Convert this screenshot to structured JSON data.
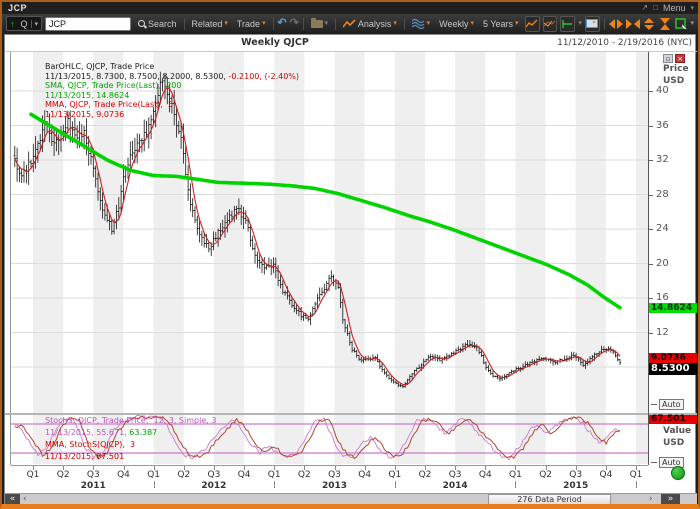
{
  "titlebar": {
    "title": "JCP",
    "menu_label": "Menu"
  },
  "icons": {
    "popout": "↗",
    "window": "□",
    "caret": "▾",
    "undo": "↶",
    "redo": "↷",
    "collapse": "▾",
    "scroll_far_left": "«",
    "scroll_left": "‹",
    "scroll_right": "›",
    "scroll_far_right": "»",
    "symbol_up_arrow": "↑",
    "close": "×",
    "minimize": "▫"
  },
  "toolbar": {
    "symbol_combo_letter": "Q",
    "symbol_input": "JCP",
    "search_label": "Search",
    "related_label": "Related",
    "trade_label": "Trade",
    "analysis_label": "Analysis",
    "interval_label": "Weekly",
    "range_label": "5 Years"
  },
  "chart": {
    "title": "Weekly QJCP",
    "date_range": "11/12/2010 - 2/19/2016 (NYC)",
    "legend_main": [
      {
        "segments": [
          {
            "text": "BarOHLC, QJCP, Trade Price",
            "color": "#1a1a1a"
          }
        ]
      },
      {
        "segments": [
          {
            "text": "11/13/2015, 8.7300, 8.7500, 8.2000, 8.5300, ",
            "color": "#1a1a1a"
          },
          {
            "text": "-0.2100, (-2.40%)",
            "color": "#d40000"
          }
        ]
      },
      {
        "segments": [
          {
            "text": "SMA, QJCP, Trade Price(Last),  200",
            "color": "#00a500"
          }
        ]
      },
      {
        "segments": [
          {
            "text": "11/13/2015, 14.8624",
            "color": "#00a500"
          }
        ]
      },
      {
        "segments": [
          {
            "text": "MMA, QJCP, Trade Price(Last),  5",
            "color": "#d40000"
          }
        ]
      },
      {
        "segments": [
          {
            "text": "11/13/2015, 9.0736",
            "color": "#d40000"
          }
        ]
      }
    ],
    "legend_stoch": [
      {
        "segments": [
          {
            "text": "StochS, QJCP, Trade Price,  12, 3, Simple, 3",
            "color": "#bb55bb"
          }
        ]
      },
      {
        "segments": [
          {
            "text": "11/13/2015, 55.671, ",
            "color": "#bb55bb"
          },
          {
            "text": "63.387",
            "color": "#00a500"
          }
        ]
      },
      {
        "segments": [
          {
            "text": "MMA, StochS(QJCP),  3",
            "color": "#d40000"
          }
        ]
      },
      {
        "segments": [
          {
            "text": "11/13/2015, 67.501",
            "color": "#d40000"
          }
        ]
      }
    ],
    "price_axis": {
      "title_line1": "Price",
      "title_line2": "USD",
      "ticks": [
        40,
        36,
        32,
        28,
        24,
        20,
        16,
        12,
        8
      ],
      "auto_label": "Auto",
      "price_labels": [
        {
          "text": "14.8624",
          "value": 14.8624,
          "bg": "#00dd00",
          "fg": "#003300"
        },
        {
          "text": "9.0736",
          "value": 9.0736,
          "bg": "#e80000",
          "fg": "#200000"
        },
        {
          "text": "8.5300",
          "value": 8.53,
          "bg": "#000000",
          "fg": "#ffffff"
        }
      ]
    },
    "value_axis": {
      "title_line1": "Value",
      "title_line2": "USD",
      "auto_label": "Auto",
      "top_label": {
        "text": "67.501",
        "bg": "#e80000",
        "fg": "#200000"
      }
    },
    "x_axis": {
      "quarters": [
        "Q1",
        "Q2",
        "Q3",
        "Q4",
        "Q1",
        "Q2",
        "Q3",
        "Q4",
        "Q1",
        "Q2",
        "Q3",
        "Q4",
        "Q1",
        "Q2",
        "Q3",
        "Q4",
        "Q1",
        "Q2",
        "Q3",
        "Q4",
        "Q1"
      ],
      "years": [
        "2011",
        "2012",
        "2013",
        "2014",
        "2015"
      ]
    },
    "scrollbar": {
      "data_period_label": "276 Data Period"
    }
  },
  "chart_data": {
    "type": "ohlc",
    "title": "Weekly QJCP",
    "symbol": "QJCP",
    "interval": "Weekly",
    "date_range": [
      "11/12/2010",
      "2/19/2016"
    ],
    "weeks_shown": 276,
    "last_bar": {
      "date": "11/13/2015",
      "open": 8.73,
      "high": 8.75,
      "low": 8.2,
      "close": 8.53,
      "change": -0.21,
      "change_pct": -2.4
    },
    "price_axis": {
      "min": 4,
      "max": 44,
      "tick_step": 4,
      "unit": "USD"
    },
    "overlays": [
      {
        "name": "SMA 200",
        "color": "#00d300",
        "last": 14.8624
      },
      {
        "name": "MMA 5",
        "color": "#cc2020",
        "last": 9.0736
      }
    ],
    "close_weekly_anchors": [
      [
        0,
        31.8
      ],
      [
        3,
        29.8
      ],
      [
        6,
        31.5
      ],
      [
        10,
        33.5
      ],
      [
        13,
        36.3
      ],
      [
        17,
        33.8
      ],
      [
        20,
        35.0
      ],
      [
        23,
        36.5
      ],
      [
        26,
        34.5
      ],
      [
        30,
        35.2
      ],
      [
        34,
        31.0
      ],
      [
        38,
        26.0
      ],
      [
        42,
        24.0
      ],
      [
        45,
        26.5
      ],
      [
        47,
        30.0
      ],
      [
        51,
        33.2
      ],
      [
        56,
        34.8
      ],
      [
        60,
        37.5
      ],
      [
        64,
        41.6
      ],
      [
        68,
        38.5
      ],
      [
        72,
        34.5
      ],
      [
        76,
        27.0
      ],
      [
        80,
        23.0
      ],
      [
        84,
        21.8
      ],
      [
        88,
        23.5
      ],
      [
        92,
        25.0
      ],
      [
        96,
        26.3
      ],
      [
        100,
        25.0
      ],
      [
        104,
        21.0
      ],
      [
        108,
        19.5
      ],
      [
        112,
        19.8
      ],
      [
        116,
        16.8
      ],
      [
        120,
        15.2
      ],
      [
        124,
        14.0
      ],
      [
        127,
        13.6
      ],
      [
        130,
        15.5
      ],
      [
        134,
        17.2
      ],
      [
        137,
        18.5
      ],
      [
        140,
        17.0
      ],
      [
        142,
        13.5
      ],
      [
        146,
        10.0
      ],
      [
        150,
        8.7
      ],
      [
        152,
        8.9
      ],
      [
        156,
        9.0
      ],
      [
        160,
        7.3
      ],
      [
        164,
        6.2
      ],
      [
        168,
        5.7
      ],
      [
        172,
        7.2
      ],
      [
        176,
        8.3
      ],
      [
        180,
        9.3
      ],
      [
        184,
        8.8
      ],
      [
        188,
        9.3
      ],
      [
        192,
        10.0
      ],
      [
        196,
        10.6
      ],
      [
        200,
        10.4
      ],
      [
        204,
        8.0
      ],
      [
        207,
        7.0
      ],
      [
        210,
        6.6
      ],
      [
        214,
        7.4
      ],
      [
        218,
        7.8
      ],
      [
        222,
        8.3
      ],
      [
        226,
        8.8
      ],
      [
        230,
        9.0
      ],
      [
        234,
        8.5
      ],
      [
        238,
        9.0
      ],
      [
        242,
        9.4
      ],
      [
        246,
        8.3
      ],
      [
        250,
        9.2
      ],
      [
        254,
        9.9
      ],
      [
        257,
        10.0
      ],
      [
        259,
        9.6
      ],
      [
        261,
        8.9
      ],
      [
        262,
        8.53
      ]
    ],
    "sma200_anchors": [
      [
        7,
        37.3
      ],
      [
        20,
        35.2
      ],
      [
        30,
        33.6
      ],
      [
        40,
        32.0
      ],
      [
        50,
        30.8
      ],
      [
        60,
        30.2
      ],
      [
        70,
        30.1
      ],
      [
        78,
        29.8
      ],
      [
        88,
        29.4
      ],
      [
        100,
        29.3
      ],
      [
        110,
        29.2
      ],
      [
        120,
        29.0
      ],
      [
        130,
        28.7
      ],
      [
        140,
        28.1
      ],
      [
        150,
        27.3
      ],
      [
        160,
        26.5
      ],
      [
        170,
        25.6
      ],
      [
        180,
        24.8
      ],
      [
        190,
        23.9
      ],
      [
        200,
        22.9
      ],
      [
        210,
        21.9
      ],
      [
        220,
        20.9
      ],
      [
        230,
        19.9
      ],
      [
        240,
        18.7
      ],
      [
        248,
        17.5
      ],
      [
        255,
        16.1
      ],
      [
        262,
        14.8624
      ]
    ],
    "stoch_panel": {
      "indicator": "StochS(12,3,Simple,3) with MMA(3)",
      "levels": [
        20,
        80
      ],
      "range": [
        0,
        100
      ],
      "stoch_last": 55.671,
      "stoch_slow_last": 63.387,
      "mma3_last": 67.501,
      "mma3_anchors": [
        [
          0,
          72
        ],
        [
          3,
          78
        ],
        [
          8,
          45
        ],
        [
          12,
          15
        ],
        [
          16,
          30
        ],
        [
          20,
          70
        ],
        [
          24,
          92
        ],
        [
          28,
          88
        ],
        [
          32,
          35
        ],
        [
          36,
          12
        ],
        [
          40,
          20
        ],
        [
          44,
          60
        ],
        [
          48,
          85
        ],
        [
          52,
          90
        ],
        [
          56,
          95
        ],
        [
          60,
          92
        ],
        [
          64,
          96
        ],
        [
          68,
          75
        ],
        [
          72,
          40
        ],
        [
          76,
          14
        ],
        [
          80,
          12
        ],
        [
          84,
          25
        ],
        [
          88,
          50
        ],
        [
          92,
          70
        ],
        [
          96,
          88
        ],
        [
          100,
          72
        ],
        [
          104,
          40
        ],
        [
          108,
          20
        ],
        [
          112,
          35
        ],
        [
          116,
          18
        ],
        [
          120,
          12
        ],
        [
          124,
          20
        ],
        [
          128,
          55
        ],
        [
          132,
          85
        ],
        [
          136,
          92
        ],
        [
          140,
          45
        ],
        [
          144,
          15
        ],
        [
          148,
          10
        ],
        [
          152,
          35
        ],
        [
          156,
          55
        ],
        [
          160,
          28
        ],
        [
          164,
          12
        ],
        [
          168,
          18
        ],
        [
          172,
          50
        ],
        [
          176,
          85
        ],
        [
          180,
          90
        ],
        [
          184,
          80
        ],
        [
          188,
          60
        ],
        [
          192,
          78
        ],
        [
          196,
          92
        ],
        [
          200,
          75
        ],
        [
          204,
          55
        ],
        [
          208,
          35
        ],
        [
          212,
          14
        ],
        [
          216,
          10
        ],
        [
          220,
          30
        ],
        [
          224,
          60
        ],
        [
          228,
          80
        ],
        [
          232,
          60
        ],
        [
          236,
          78
        ],
        [
          240,
          90
        ],
        [
          244,
          94
        ],
        [
          248,
          82
        ],
        [
          252,
          55
        ],
        [
          256,
          40
        ],
        [
          259,
          58
        ],
        [
          262,
          67.5
        ]
      ]
    }
  }
}
